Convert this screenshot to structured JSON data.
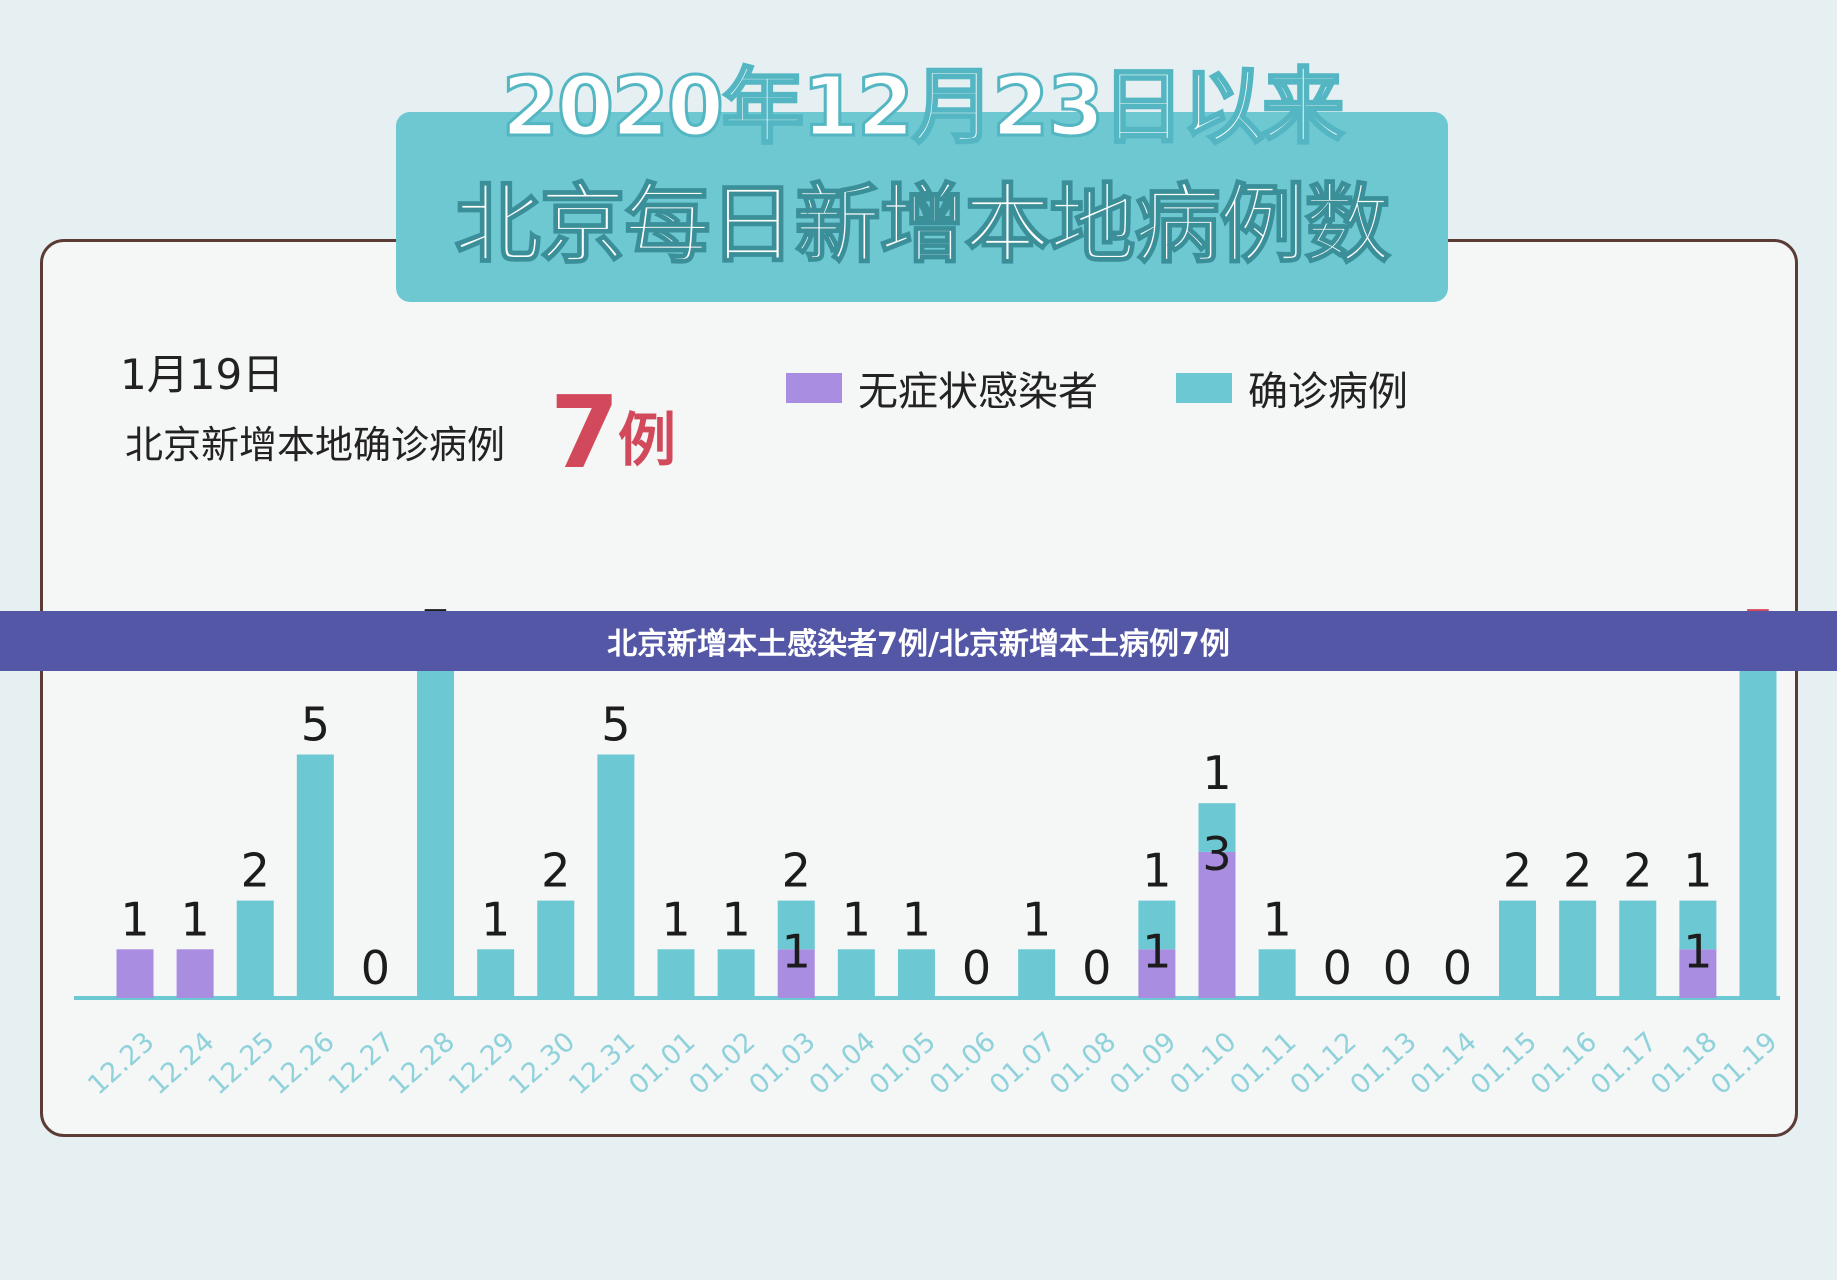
{
  "title": {
    "line1": "2020年12月23日以来",
    "line2": "北京每日新增本地病例数"
  },
  "info": {
    "date": "1月19日",
    "label": "北京新增本地确诊病例",
    "count": "7",
    "unit": "例"
  },
  "banner": {
    "text": "北京新增本土感染者7例/北京新增本土病例7例"
  },
  "colors": {
    "asymptomatic": "#a98de0",
    "confirmed": "#6cc8d3",
    "highlight": "#d1495b",
    "axis": "#6cc8d3",
    "banner": "#5457a6"
  },
  "chart_data": {
    "type": "bar",
    "stacked": true,
    "legend_position": "top-right",
    "categories": [
      "12.23",
      "12.24",
      "12.25",
      "12.26",
      "12.27",
      "12.28",
      "12.29",
      "12.30",
      "12.31",
      "01.01",
      "01.02",
      "01.03",
      "01.04",
      "01.05",
      "01.06",
      "01.07",
      "01.08",
      "01.09",
      "01.10",
      "01.11",
      "01.12",
      "01.13",
      "01.14",
      "01.15",
      "01.16",
      "01.17",
      "01.18",
      "01.19"
    ],
    "series": [
      {
        "name": "无症状感染者",
        "values": [
          1,
          1,
          0,
          0,
          0,
          0,
          0,
          0,
          0,
          0,
          0,
          1,
          0,
          0,
          0,
          0,
          0,
          1,
          3,
          0,
          0,
          0,
          0,
          0,
          0,
          0,
          1,
          0
        ]
      },
      {
        "name": "确诊病例",
        "values": [
          0,
          0,
          2,
          5,
          0,
          7,
          1,
          2,
          5,
          1,
          1,
          1,
          1,
          1,
          0,
          1,
          0,
          1,
          1,
          1,
          0,
          0,
          0,
          2,
          2,
          2,
          1,
          7
        ]
      }
    ],
    "top_labels": [
      "1",
      "1",
      "2",
      "5",
      "0",
      "7",
      "1",
      "2",
      "5",
      "1",
      "1",
      "2",
      "1",
      "1",
      "0",
      "1",
      "0",
      "1",
      "1",
      "1",
      "0",
      "0",
      "0",
      "2",
      "2",
      "2",
      "1",
      "7"
    ],
    "inner_labels": [
      "",
      "",
      "",
      "",
      "",
      "",
      "",
      "",
      "",
      "",
      "",
      "1",
      "",
      "",
      "",
      "",
      "",
      "1",
      "3",
      "",
      "",
      "",
      "",
      "",
      "",
      "",
      "1",
      ""
    ],
    "ylim": [
      0,
      7
    ]
  }
}
